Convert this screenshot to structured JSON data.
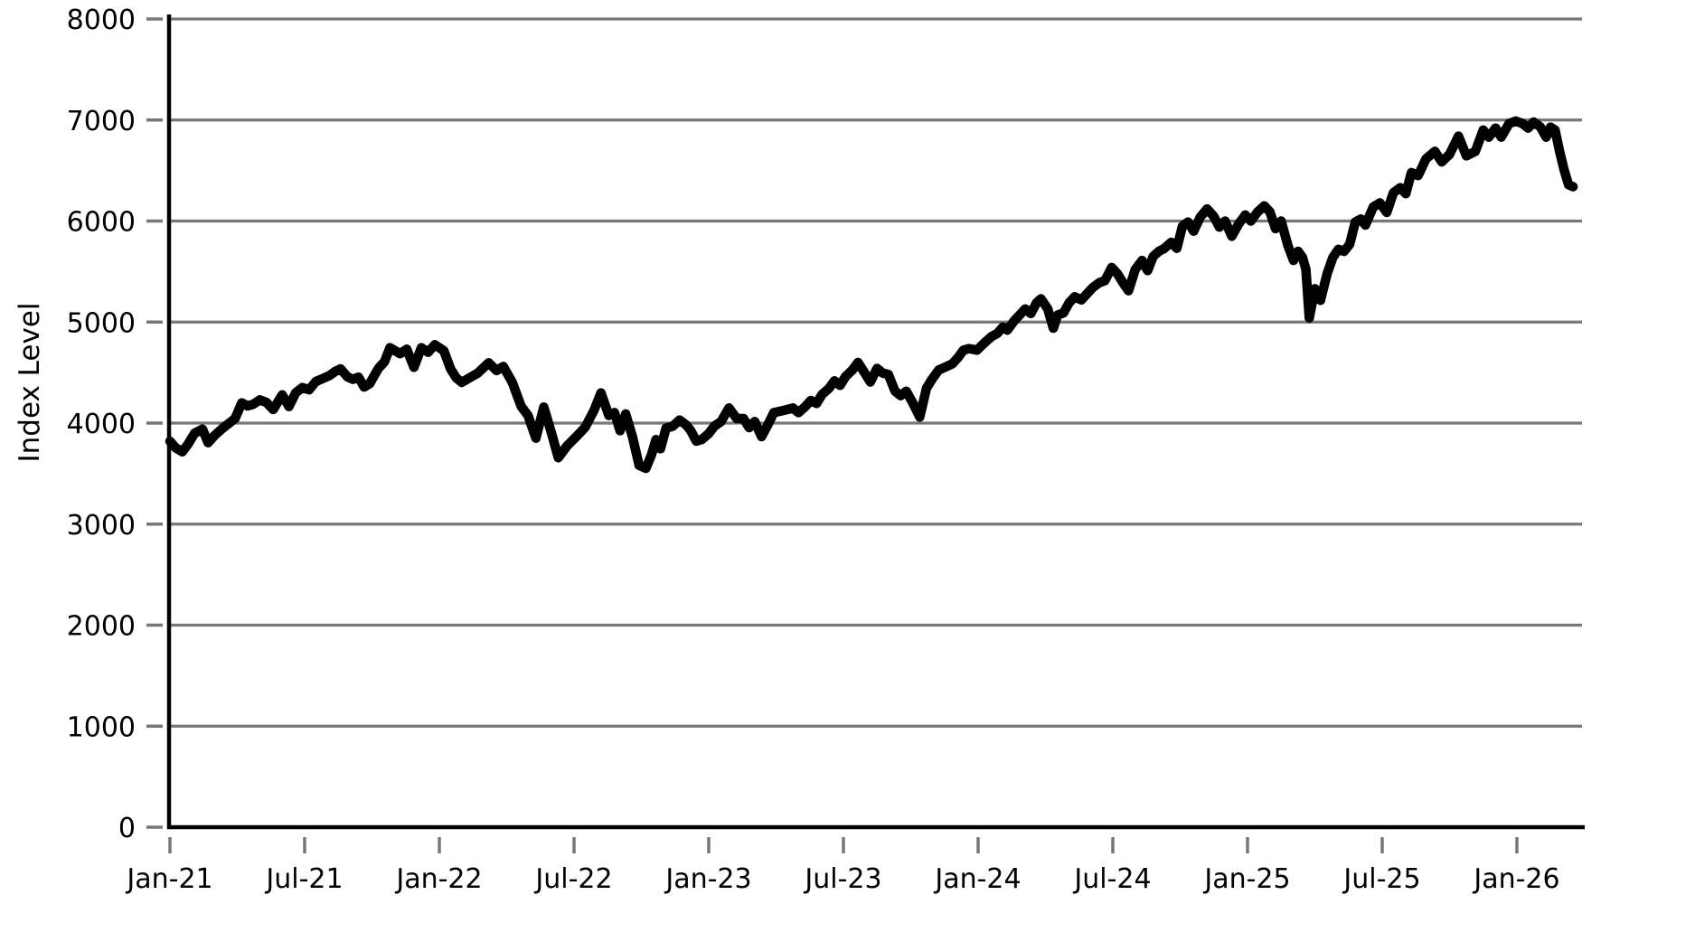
{
  "chart_data": {
    "type": "line",
    "title": "",
    "xlabel": "",
    "ylabel": "Index Level",
    "legend": "none",
    "grid": "horizontal",
    "y_range": [
      0,
      8000
    ],
    "x_range_months": [
      0,
      62.9
    ],
    "y_ticks": [
      0,
      1000,
      2000,
      3000,
      4000,
      5000,
      6000,
      7000,
      8000
    ],
    "x_ticks": [
      {
        "month": 0,
        "label": "Jan-21"
      },
      {
        "month": 6,
        "label": "Jul-21"
      },
      {
        "month": 12,
        "label": "Jan-22"
      },
      {
        "month": 18,
        "label": "Jul-22"
      },
      {
        "month": 24,
        "label": "Jan-23"
      },
      {
        "month": 30,
        "label": "Jul-23"
      },
      {
        "month": 36,
        "label": "Jan-24"
      },
      {
        "month": 42,
        "label": "Jul-24"
      },
      {
        "month": 48,
        "label": "Jan-25"
      },
      {
        "month": 54,
        "label": "Jul-25"
      },
      {
        "month": 60,
        "label": "Jan-26"
      }
    ],
    "colors": {
      "line": "#000000",
      "grid": "#777777",
      "tick": "#777777",
      "spine": "#000000",
      "text": "#000000",
      "background": "#ffffff"
    },
    "series": [
      {
        "name": "Index Level",
        "x_unit": "months since Jan-2021",
        "points": [
          [
            0,
            3820
          ],
          [
            0.25,
            3757
          ],
          [
            0.55,
            3716
          ],
          [
            0.8,
            3790
          ],
          [
            1.1,
            3900
          ],
          [
            1.45,
            3940
          ],
          [
            1.7,
            3806
          ],
          [
            2.0,
            3880
          ],
          [
            2.35,
            3950
          ],
          [
            2.9,
            4045
          ],
          [
            3.2,
            4200
          ],
          [
            3.45,
            4170
          ],
          [
            3.7,
            4185
          ],
          [
            4.0,
            4230
          ],
          [
            4.3,
            4204
          ],
          [
            4.6,
            4134
          ],
          [
            5.0,
            4280
          ],
          [
            5.3,
            4164
          ],
          [
            5.6,
            4300
          ],
          [
            5.9,
            4352
          ],
          [
            6.2,
            4330
          ],
          [
            6.5,
            4412
          ],
          [
            6.8,
            4440
          ],
          [
            7.1,
            4470
          ],
          [
            7.35,
            4509
          ],
          [
            7.6,
            4537
          ],
          [
            7.9,
            4459
          ],
          [
            8.15,
            4433
          ],
          [
            8.4,
            4455
          ],
          [
            8.65,
            4357
          ],
          [
            8.9,
            4391
          ],
          [
            9.1,
            4471
          ],
          [
            9.3,
            4545
          ],
          [
            9.55,
            4605
          ],
          [
            9.8,
            4746
          ],
          [
            10.25,
            4687
          ],
          [
            10.55,
            4731
          ],
          [
            10.87,
            4552
          ],
          [
            11.2,
            4746
          ],
          [
            11.5,
            4701
          ],
          [
            11.8,
            4776
          ],
          [
            12.2,
            4716
          ],
          [
            12.5,
            4537
          ],
          [
            12.75,
            4448
          ],
          [
            13.0,
            4403
          ],
          [
            13.35,
            4448
          ],
          [
            13.7,
            4493
          ],
          [
            14.2,
            4597
          ],
          [
            14.55,
            4520
          ],
          [
            14.85,
            4560
          ],
          [
            15.25,
            4403
          ],
          [
            15.65,
            4164
          ],
          [
            15.95,
            4075
          ],
          [
            16.3,
            3851
          ],
          [
            16.65,
            4158
          ],
          [
            17.0,
            3896
          ],
          [
            17.3,
            3657
          ],
          [
            17.7,
            3776
          ],
          [
            18.1,
            3866
          ],
          [
            18.5,
            3960
          ],
          [
            18.9,
            4130
          ],
          [
            19.2,
            4299
          ],
          [
            19.55,
            4075
          ],
          [
            19.8,
            4104
          ],
          [
            20.05,
            3925
          ],
          [
            20.3,
            4090
          ],
          [
            20.6,
            3866
          ],
          [
            20.9,
            3582
          ],
          [
            21.2,
            3552
          ],
          [
            21.45,
            3687
          ],
          [
            21.65,
            3836
          ],
          [
            21.85,
            3746
          ],
          [
            22.1,
            3950
          ],
          [
            22.4,
            3970
          ],
          [
            22.7,
            4030
          ],
          [
            23.0,
            3980
          ],
          [
            23.2,
            3925
          ],
          [
            23.45,
            3821
          ],
          [
            23.7,
            3839
          ],
          [
            24.0,
            3896
          ],
          [
            24.25,
            3970
          ],
          [
            24.55,
            4015
          ],
          [
            24.9,
            4149
          ],
          [
            25.25,
            4045
          ],
          [
            25.55,
            4045
          ],
          [
            25.8,
            3955
          ],
          [
            26.05,
            4015
          ],
          [
            26.35,
            3866
          ],
          [
            26.65,
            3990
          ],
          [
            26.9,
            4104
          ],
          [
            27.2,
            4119
          ],
          [
            27.5,
            4134
          ],
          [
            27.75,
            4149
          ],
          [
            28.0,
            4104
          ],
          [
            28.3,
            4164
          ],
          [
            28.55,
            4224
          ],
          [
            28.8,
            4194
          ],
          [
            29.05,
            4284
          ],
          [
            29.35,
            4343
          ],
          [
            29.6,
            4418
          ],
          [
            29.85,
            4373
          ],
          [
            30.1,
            4463
          ],
          [
            30.4,
            4525
          ],
          [
            30.65,
            4600
          ],
          [
            30.95,
            4496
          ],
          [
            31.2,
            4406
          ],
          [
            31.5,
            4541
          ],
          [
            31.75,
            4496
          ],
          [
            32.0,
            4481
          ],
          [
            32.3,
            4316
          ],
          [
            32.55,
            4271
          ],
          [
            32.8,
            4316
          ],
          [
            33.1,
            4195
          ],
          [
            33.4,
            4060
          ],
          [
            33.7,
            4346
          ],
          [
            33.95,
            4436
          ],
          [
            34.25,
            4526
          ],
          [
            34.55,
            4556
          ],
          [
            34.85,
            4586
          ],
          [
            35.1,
            4647
          ],
          [
            35.35,
            4722
          ],
          [
            35.6,
            4737
          ],
          [
            35.95,
            4722
          ],
          [
            36.3,
            4797
          ],
          [
            36.6,
            4857
          ],
          [
            36.85,
            4887
          ],
          [
            37.1,
            4950
          ],
          [
            37.3,
            4920
          ],
          [
            37.6,
            5010
          ],
          [
            37.85,
            5070
          ],
          [
            38.1,
            5130
          ],
          [
            38.35,
            5085
          ],
          [
            38.6,
            5190
          ],
          [
            38.8,
            5230
          ],
          [
            39.1,
            5130
          ],
          [
            39.35,
            4940
          ],
          [
            39.55,
            5070
          ],
          [
            39.8,
            5090
          ],
          [
            40.05,
            5190
          ],
          [
            40.3,
            5250
          ],
          [
            40.6,
            5220
          ],
          [
            40.85,
            5280
          ],
          [
            41.1,
            5340
          ],
          [
            41.4,
            5390
          ],
          [
            41.65,
            5410
          ],
          [
            41.95,
            5540
          ],
          [
            42.2,
            5480
          ],
          [
            42.45,
            5390
          ],
          [
            42.7,
            5310
          ],
          [
            43.0,
            5520
          ],
          [
            43.3,
            5610
          ],
          [
            43.55,
            5510
          ],
          [
            43.8,
            5650
          ],
          [
            44.05,
            5700
          ],
          [
            44.3,
            5730
          ],
          [
            44.6,
            5790
          ],
          [
            44.85,
            5730
          ],
          [
            45.1,
            5950
          ],
          [
            45.35,
            5990
          ],
          [
            45.6,
            5900
          ],
          [
            45.9,
            6040
          ],
          [
            46.2,
            6120
          ],
          [
            46.5,
            6045
          ],
          [
            46.75,
            5940
          ],
          [
            47.0,
            6000
          ],
          [
            47.3,
            5850
          ],
          [
            47.6,
            5970
          ],
          [
            47.9,
            6060
          ],
          [
            48.15,
            6000
          ],
          [
            48.45,
            6090
          ],
          [
            48.75,
            6150
          ],
          [
            49.0,
            6090
          ],
          [
            49.25,
            5925
          ],
          [
            49.5,
            6000
          ],
          [
            49.8,
            5757
          ],
          [
            50.05,
            5610
          ],
          [
            50.25,
            5700
          ],
          [
            50.45,
            5640
          ],
          [
            50.6,
            5520
          ],
          [
            50.75,
            5040
          ],
          [
            51.0,
            5330
          ],
          [
            51.25,
            5215
          ],
          [
            51.55,
            5480
          ],
          [
            51.8,
            5640
          ],
          [
            52.05,
            5720
          ],
          [
            52.3,
            5700
          ],
          [
            52.55,
            5770
          ],
          [
            52.8,
            5990
          ],
          [
            53.05,
            6020
          ],
          [
            53.25,
            5960
          ],
          [
            53.6,
            6140
          ],
          [
            53.9,
            6180
          ],
          [
            54.2,
            6085
          ],
          [
            54.5,
            6280
          ],
          [
            54.8,
            6330
          ],
          [
            55.05,
            6270
          ],
          [
            55.3,
            6480
          ],
          [
            55.6,
            6450
          ],
          [
            55.95,
            6615
          ],
          [
            56.35,
            6690
          ],
          [
            56.65,
            6585
          ],
          [
            57.0,
            6660
          ],
          [
            57.4,
            6840
          ],
          [
            57.75,
            6645
          ],
          [
            58.15,
            6690
          ],
          [
            58.5,
            6900
          ],
          [
            58.75,
            6830
          ],
          [
            59.05,
            6920
          ],
          [
            59.3,
            6830
          ],
          [
            59.65,
            6965
          ],
          [
            59.95,
            6990
          ],
          [
            60.25,
            6965
          ],
          [
            60.5,
            6920
          ],
          [
            60.75,
            6980
          ],
          [
            61.05,
            6930
          ],
          [
            61.3,
            6830
          ],
          [
            61.5,
            6930
          ],
          [
            61.7,
            6900
          ],
          [
            61.9,
            6690
          ],
          [
            62.1,
            6510
          ],
          [
            62.3,
            6360
          ],
          [
            62.5,
            6340
          ]
        ]
      }
    ]
  }
}
